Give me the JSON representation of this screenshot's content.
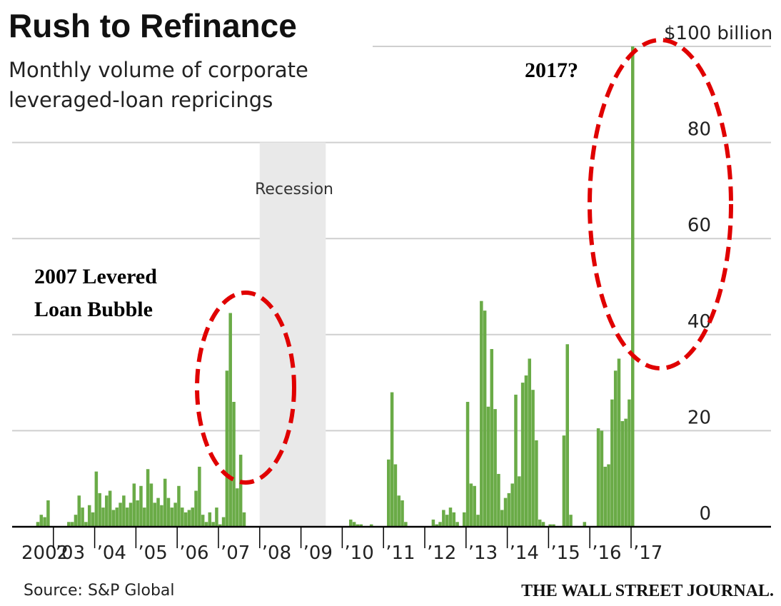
{
  "chart_data": {
    "type": "bar",
    "title": "Rush to Refinance",
    "subtitle_lines": [
      "Monthly volume of corporate",
      "leveraged-loan repricings"
    ],
    "y_unit_label": "$100 billion",
    "ylim": [
      0,
      100
    ],
    "y_ticks": [
      0,
      20,
      40,
      60,
      80
    ],
    "x_ticks": [
      "2002",
      "'03",
      "'04",
      "'05",
      "'06",
      "'07",
      "'08",
      "'09",
      "'10",
      "'11",
      "'12",
      "'13",
      "'14",
      "'15",
      "'16",
      "'17"
    ],
    "recession": {
      "label": "Recession",
      "start_year": 2008.0,
      "end_year": 2009.6
    },
    "bar_color": "#6aab47",
    "series": [
      {
        "start_year": 2002,
        "monthly_values": [
          0,
          0,
          0,
          0,
          0,
          0,
          0,
          1,
          2.5,
          2,
          5.5,
          0,
          0,
          0,
          0,
          0,
          1,
          1,
          2.5,
          6.5,
          4,
          1,
          4.5,
          3,
          11.5,
          7,
          4,
          6.5,
          7.5,
          3.5,
          4,
          5,
          6.5,
          4,
          5,
          9,
          5.5,
          8.5,
          4,
          12,
          9,
          5,
          6,
          4.5,
          10,
          6,
          4,
          5,
          8.5,
          4,
          3,
          3.5,
          4,
          7.5,
          12.5,
          2.5,
          1,
          3,
          1,
          4,
          0.5,
          2,
          32.5,
          44.5,
          26,
          8,
          15,
          3,
          0,
          0,
          0,
          0,
          0,
          0,
          0,
          0,
          0,
          0,
          0,
          0,
          0,
          0,
          0,
          0,
          0,
          0,
          0,
          0,
          0,
          0,
          0,
          0,
          0,
          0,
          0,
          0,
          0,
          0,
          1.5,
          1,
          0.5,
          0.5,
          0,
          0,
          0.5,
          0,
          0,
          0,
          0,
          14,
          28,
          13,
          6.5,
          5.5,
          1,
          0,
          0,
          0,
          0,
          0,
          0,
          0,
          1.5,
          0.5,
          1,
          3.5,
          2.5,
          4,
          3,
          1,
          0,
          3,
          26,
          9,
          8.5,
          2.5,
          47,
          45,
          25,
          37,
          24.5,
          11,
          3.5,
          6,
          7,
          9,
          27.5,
          10.5,
          30,
          31.5,
          35,
          28.5,
          18,
          1.5,
          1,
          0,
          0.5,
          0.5,
          0,
          0,
          19,
          38,
          2.5,
          0,
          0,
          0,
          1,
          0,
          0,
          0,
          20.5,
          20,
          12.5,
          13,
          26.5,
          32.5,
          35,
          22,
          22.5,
          26.5,
          100
        ]
      }
    ]
  },
  "annotations": {
    "bubble_line1": "2007 Levered",
    "bubble_line2": "Loan Bubble",
    "question": "2017?",
    "highlight_color": "#e00000"
  },
  "footer": {
    "source": "Source: S&P Global",
    "publisher": "THE WALL STREET JOURNAL."
  }
}
